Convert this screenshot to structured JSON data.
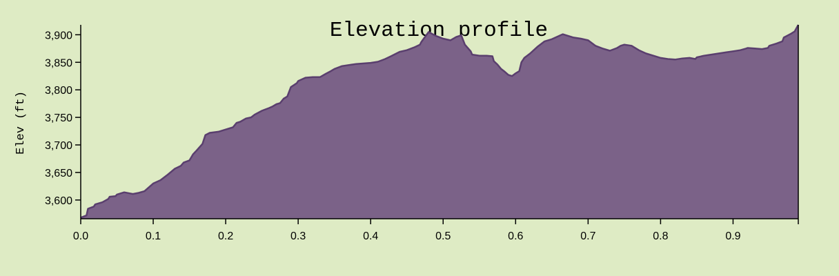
{
  "chart_data": {
    "type": "area",
    "title": "Elevation profile",
    "xlabel": "",
    "ylabel": "Elev (ft)",
    "xlim": [
      0.0,
      0.99
    ],
    "ylim": [
      3566,
      3918
    ],
    "x_ticks": [
      0.0,
      0.1,
      0.2,
      0.3,
      0.4,
      0.5,
      0.6,
      0.7,
      0.8,
      0.9
    ],
    "x_tick_labels": [
      "0.0",
      "0.1",
      "0.2",
      "0.3",
      "0.4",
      "0.5",
      "0.6",
      "0.7",
      "0.8",
      "0.9"
    ],
    "y_ticks": [
      3600,
      3650,
      3700,
      3750,
      3800,
      3850,
      3900
    ],
    "y_tick_labels": [
      "3,600",
      "3,650",
      "3,700",
      "3,750",
      "3,800",
      "3,850",
      "3,900"
    ],
    "grid": false,
    "colors": {
      "fill": "#7b6288",
      "stroke": "#5a3f6e",
      "background": "#deebc4",
      "axis": "#000000"
    },
    "series": [
      {
        "x": [
          0.0,
          0.008,
          0.01,
          0.018,
          0.02,
          0.03,
          0.038,
          0.04,
          0.048,
          0.05,
          0.06,
          0.068,
          0.072,
          0.08,
          0.088,
          0.1,
          0.11,
          0.12,
          0.13,
          0.138,
          0.142,
          0.15,
          0.155,
          0.16,
          0.168,
          0.172,
          0.178,
          0.19,
          0.2,
          0.21,
          0.215,
          0.22,
          0.228,
          0.235,
          0.24,
          0.25,
          0.26,
          0.265,
          0.27,
          0.275,
          0.28,
          0.285,
          0.29,
          0.298,
          0.3,
          0.31,
          0.32,
          0.33,
          0.338,
          0.345,
          0.35,
          0.36,
          0.38,
          0.4,
          0.41,
          0.42,
          0.428,
          0.44,
          0.45,
          0.46,
          0.468,
          0.47,
          0.48,
          0.49,
          0.5,
          0.51,
          0.518,
          0.525,
          0.53,
          0.538,
          0.54,
          0.55,
          0.56,
          0.568,
          0.57,
          0.575,
          0.58,
          0.585,
          0.59,
          0.595,
          0.6,
          0.605,
          0.608,
          0.612,
          0.62,
          0.625,
          0.63,
          0.64,
          0.65,
          0.66,
          0.665,
          0.67,
          0.68,
          0.69,
          0.7,
          0.71,
          0.718,
          0.72,
          0.73,
          0.74,
          0.745,
          0.75,
          0.76,
          0.77,
          0.775,
          0.78,
          0.79,
          0.8,
          0.81,
          0.82,
          0.83,
          0.84,
          0.848,
          0.85,
          0.86,
          0.87,
          0.88,
          0.89,
          0.9,
          0.91,
          0.918,
          0.92,
          0.93,
          0.94,
          0.948,
          0.95,
          0.96,
          0.968,
          0.97,
          0.98,
          0.985,
          0.99
        ],
        "y": [
          3568,
          3572,
          3584,
          3588,
          3592,
          3596,
          3602,
          3606,
          3607,
          3610,
          3614,
          3612,
          3611,
          3613,
          3616,
          3630,
          3636,
          3646,
          3657,
          3662,
          3668,
          3672,
          3683,
          3690,
          3702,
          3718,
          3722,
          3724,
          3728,
          3732,
          3740,
          3742,
          3748,
          3750,
          3755,
          3762,
          3767,
          3770,
          3774,
          3776,
          3784,
          3788,
          3805,
          3812,
          3816,
          3822,
          3823,
          3823,
          3829,
          3834,
          3838,
          3843,
          3847,
          3849,
          3851,
          3856,
          3861,
          3869,
          3872,
          3877,
          3882,
          3887,
          3905,
          3898,
          3893,
          3890,
          3896,
          3899,
          3882,
          3870,
          3864,
          3862,
          3862,
          3861,
          3852,
          3846,
          3838,
          3833,
          3827,
          3825,
          3830,
          3834,
          3850,
          3858,
          3866,
          3872,
          3878,
          3888,
          3892,
          3898,
          3901,
          3899,
          3895,
          3893,
          3890,
          3880,
          3876,
          3875,
          3871,
          3876,
          3880,
          3882,
          3880,
          3872,
          3869,
          3866,
          3862,
          3858,
          3856,
          3855,
          3857,
          3858,
          3856,
          3859,
          3862,
          3864,
          3866,
          3868,
          3870,
          3872,
          3875,
          3876,
          3875,
          3874,
          3876,
          3880,
          3884,
          3888,
          3895,
          3902,
          3906,
          3918
        ]
      }
    ]
  }
}
